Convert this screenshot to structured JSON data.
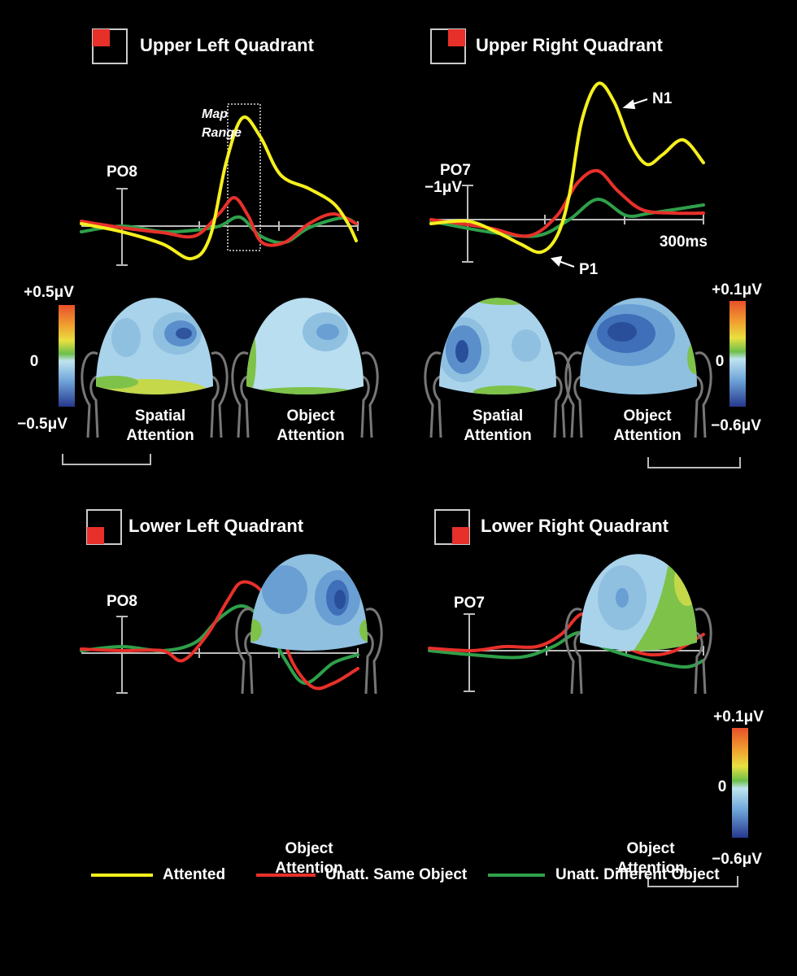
{
  "panels": [
    {
      "title": "Upper Left Quadrant",
      "electrode": "PO8",
      "annotation": [
        "Map",
        "Range"
      ],
      "maps": [
        [
          "Spatial",
          "Attention"
        ],
        [
          "Object",
          "Attention"
        ]
      ],
      "scale": [
        "+0.5μV",
        "0",
        "−0.5μV"
      ]
    },
    {
      "title": "Upper Right Quadrant",
      "electrode": "PO7",
      "amplitude": "−1μV",
      "time": "300ms",
      "peaks": [
        "N1",
        "P1"
      ],
      "maps": [
        [
          "Spatial",
          "Attention"
        ],
        [
          "Object",
          "Attention"
        ]
      ],
      "scale": [
        "+0.1μV",
        "0",
        "−0.6μV"
      ]
    },
    {
      "title": "Lower Left Quadrant",
      "electrode": "PO8",
      "maps": [
        [
          "Object",
          "Attention"
        ]
      ]
    },
    {
      "title": "Lower Right Quadrant",
      "electrode": "PO7",
      "maps": [
        [
          "Object",
          "Attention"
        ]
      ],
      "scale": [
        "+0.1μV",
        "0",
        "−0.6μV"
      ]
    }
  ],
  "legend": [
    "Attented",
    "Unatt. Same Object",
    "Unatt. Different Object"
  ]
}
